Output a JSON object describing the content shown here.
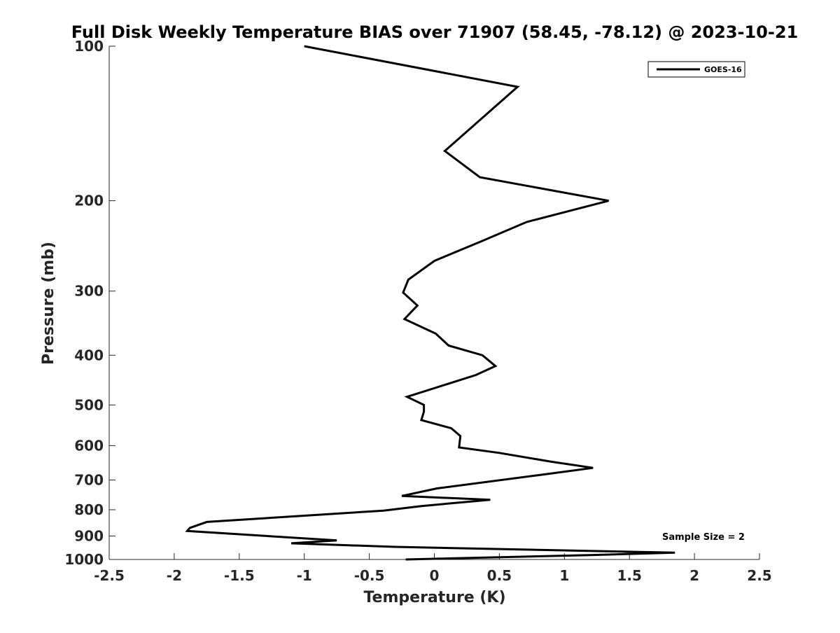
{
  "chart_data": {
    "type": "line",
    "title": "Full Disk Weekly Temperature BIAS over 71907 (58.45, -78.12) @ 2023-10-21",
    "xlabel": "Temperature (K)",
    "ylabel": "Pressure (mb)",
    "xlim": [
      -2.5,
      2.5
    ],
    "ylim": [
      100,
      1000
    ],
    "y_scale": "log",
    "y_reversed": true,
    "x_ticks": [
      -2.5,
      -2,
      -1.5,
      -1,
      -0.5,
      0,
      0.5,
      1,
      1.5,
      2,
      2.5
    ],
    "x_tick_labels": [
      "-2.5",
      "-2",
      "-1.5",
      "-1",
      "-0.5",
      "0",
      "0.5",
      "1",
      "1.5",
      "2",
      "2.5"
    ],
    "y_ticks": [
      100,
      200,
      300,
      400,
      500,
      600,
      700,
      800,
      900,
      1000
    ],
    "y_tick_labels": [
      "100",
      "200",
      "300",
      "400",
      "500",
      "600",
      "700",
      "800",
      "900",
      "1000"
    ],
    "grid": false,
    "legend_position": "top-right",
    "series": [
      {
        "name": "GOES-16",
        "color": "#000000",
        "points": [
          {
            "x": -1.0,
            "y": 100
          },
          {
            "x": 0.64,
            "y": 120
          },
          {
            "x": 0.08,
            "y": 160
          },
          {
            "x": 0.35,
            "y": 180
          },
          {
            "x": 1.34,
            "y": 200
          },
          {
            "x": 0.71,
            "y": 220
          },
          {
            "x": 0.36,
            "y": 240
          },
          {
            "x": 0.0,
            "y": 262
          },
          {
            "x": -0.2,
            "y": 285
          },
          {
            "x": -0.24,
            "y": 302
          },
          {
            "x": -0.13,
            "y": 320
          },
          {
            "x": -0.23,
            "y": 340
          },
          {
            "x": 0.01,
            "y": 363
          },
          {
            "x": 0.11,
            "y": 383
          },
          {
            "x": 0.37,
            "y": 400
          },
          {
            "x": 0.47,
            "y": 420
          },
          {
            "x": 0.32,
            "y": 437
          },
          {
            "x": -0.21,
            "y": 482
          },
          {
            "x": -0.08,
            "y": 500
          },
          {
            "x": -0.08,
            "y": 515
          },
          {
            "x": -0.1,
            "y": 535
          },
          {
            "x": 0.13,
            "y": 555
          },
          {
            "x": 0.2,
            "y": 575
          },
          {
            "x": 0.19,
            "y": 605
          },
          {
            "x": 0.5,
            "y": 620
          },
          {
            "x": 0.9,
            "y": 645
          },
          {
            "x": 1.22,
            "y": 663
          },
          {
            "x": 0.8,
            "y": 685
          },
          {
            "x": 0.02,
            "y": 727
          },
          {
            "x": -0.25,
            "y": 752
          },
          {
            "x": 0.43,
            "y": 765
          },
          {
            "x": -0.1,
            "y": 787
          },
          {
            "x": -0.39,
            "y": 803
          },
          {
            "x": -1.75,
            "y": 845
          },
          {
            "x": -1.88,
            "y": 868
          },
          {
            "x": -1.9,
            "y": 880
          },
          {
            "x": -0.75,
            "y": 918
          },
          {
            "x": -1.1,
            "y": 930
          },
          {
            "x": -0.3,
            "y": 945
          },
          {
            "x": 1.85,
            "y": 970
          },
          {
            "x": 1.22,
            "y": 980
          },
          {
            "x": -0.22,
            "y": 1000
          }
        ]
      }
    ],
    "annotations": [
      {
        "text": "Sample Size = 2",
        "position": "bottom-right"
      }
    ]
  }
}
